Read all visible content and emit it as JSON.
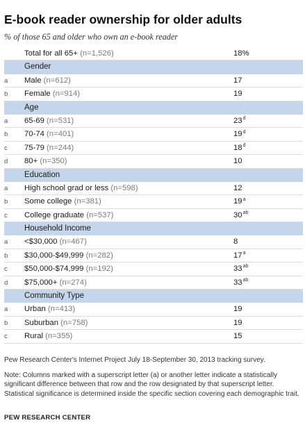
{
  "title": "E-book reader ownership for older adults",
  "subtitle": "% of those 65 and older who own an e-book reader",
  "chart_data": {
    "type": "table",
    "total": {
      "label": "Total for all 65+",
      "n": "(n=1,526)",
      "value": "18%"
    },
    "sections": [
      {
        "name": "Gender",
        "rows": [
          {
            "letter": "a",
            "label": "Male",
            "n": "(n=612)",
            "value": "17",
            "sup": ""
          },
          {
            "letter": "b",
            "label": "Female",
            "n": "(n=914)",
            "value": "19",
            "sup": ""
          }
        ]
      },
      {
        "name": "Age",
        "rows": [
          {
            "letter": "a",
            "label": "65-69",
            "n": "(n=531)",
            "value": "23",
            "sup": "d"
          },
          {
            "letter": "b",
            "label": "70-74",
            "n": "(n=401)",
            "value": "19",
            "sup": "d"
          },
          {
            "letter": "c",
            "label": "75-79",
            "n": "(n=244)",
            "value": "18",
            "sup": "d"
          },
          {
            "letter": "d",
            "label": "80+",
            "n": "(n=350)",
            "value": "10",
            "sup": ""
          }
        ]
      },
      {
        "name": "Education",
        "rows": [
          {
            "letter": "a",
            "label": "High school grad or less",
            "n": "(n=598)",
            "value": "12",
            "sup": ""
          },
          {
            "letter": "b",
            "label": "Some college",
            "n": "(n=381)",
            "value": "19",
            "sup": "a"
          },
          {
            "letter": "c",
            "label": "College graduate",
            "n": "(n=537)",
            "value": "30",
            "sup": "ab"
          }
        ]
      },
      {
        "name": "Household Income",
        "rows": [
          {
            "letter": "a",
            "label": "<$30,000",
            "n": "(n=467)",
            "value": "8",
            "sup": ""
          },
          {
            "letter": "b",
            "label": "$30,000-$49,999",
            "n": "(n=282)",
            "value": "17",
            "sup": "a"
          },
          {
            "letter": "c",
            "label": "$50,000-$74,999",
            "n": "(n=192)",
            "value": "33",
            "sup": "ab"
          },
          {
            "letter": "d",
            "label": "$75,000+",
            "n": "(n=274)",
            "value": "33",
            "sup": "ab"
          }
        ]
      },
      {
        "name": "Community Type",
        "rows": [
          {
            "letter": "a",
            "label": "Urban",
            "n": "(n=413)",
            "value": "19",
            "sup": ""
          },
          {
            "letter": "b",
            "label": "Suburban",
            "n": "(n=758)",
            "value": "19",
            "sup": ""
          },
          {
            "letter": "c",
            "label": "Rural",
            "n": "(n=355)",
            "value": "15",
            "sup": ""
          }
        ]
      }
    ]
  },
  "source": "Pew Research Center's Internet Project July 18-September 30, 2013 tracking survey.",
  "note": "Note: Columns marked with a superscript letter (a) or another letter indicate a statistically significant difference between that row and the row designated by that superscript letter. Statistical significance is determined inside the specific section covering each demographic trait.",
  "brand": "PEW RESEARCH CENTER",
  "colors": {
    "section_bg": "#c5d6ea",
    "row_divider": "#dcdcdc",
    "n_text": "#7a7a7a"
  }
}
